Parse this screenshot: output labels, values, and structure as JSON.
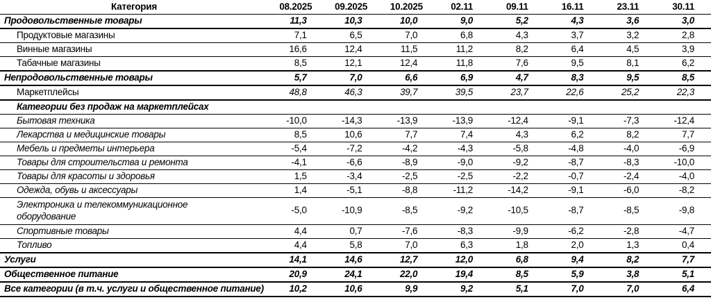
{
  "colors": {
    "background": "#ffffff",
    "text": "#000000",
    "rule": "#000000"
  },
  "table": {
    "header": {
      "category": "Категория",
      "columns": [
        "08.2025",
        "09.2025",
        "10.2025",
        "02.11",
        "09.11",
        "16.11",
        "23.11",
        "30.11"
      ]
    },
    "rows": [
      {
        "label": "Продовольственные товары",
        "style": "section",
        "values": [
          "11,3",
          "10,3",
          "10,0",
          "9,0",
          "5,2",
          "4,3",
          "3,6",
          "3,0"
        ]
      },
      {
        "label": "Продуктовые магазины",
        "style": "sub",
        "values": [
          "7,1",
          "6,5",
          "7,0",
          "6,8",
          "4,3",
          "3,7",
          "3,2",
          "2,8"
        ]
      },
      {
        "label": "Винные магазины",
        "style": "sub",
        "values": [
          "16,6",
          "12,4",
          "11,5",
          "11,2",
          "8,2",
          "6,4",
          "4,5",
          "3,9"
        ]
      },
      {
        "label": "Табачные магазины",
        "style": "sub",
        "values": [
          "8,5",
          "12,1",
          "12,4",
          "11,8",
          "7,6",
          "9,5",
          "8,1",
          "6,2"
        ]
      },
      {
        "label": "Непродовольственные товары",
        "style": "section",
        "values": [
          "5,7",
          "7,0",
          "6,6",
          "6,9",
          "4,7",
          "8,3",
          "9,5",
          "8,5"
        ]
      },
      {
        "label": "Маркетплейсы",
        "style": "subm",
        "values": [
          "48,8",
          "46,3",
          "39,7",
          "39,5",
          "23,7",
          "22,6",
          "25,2",
          "22,3"
        ]
      },
      {
        "label": "Категории без продаж на маркетплейсах",
        "style": "subsection",
        "values": [
          "",
          "",
          "",
          "",
          "",
          "",
          "",
          ""
        ]
      },
      {
        "label": "Бытовая техника",
        "style": "subi",
        "values": [
          "-10,0",
          "-14,3",
          "-13,9",
          "-13,9",
          "-12,4",
          "-9,1",
          "-7,3",
          "-12,4"
        ]
      },
      {
        "label": "Лекарства и медицинские товары",
        "style": "subi",
        "values": [
          "8,5",
          "10,6",
          "7,7",
          "7,4",
          "4,3",
          "6,2",
          "8,2",
          "7,7"
        ]
      },
      {
        "label": "Мебель и предметы интерьера",
        "style": "subi",
        "values": [
          "-5,4",
          "-7,2",
          "-4,2",
          "-4,3",
          "-5,8",
          "-4,8",
          "-4,0",
          "-6,9"
        ]
      },
      {
        "label": "Товары для строительства и ремонта",
        "style": "subi",
        "values": [
          "-4,1",
          "-6,6",
          "-8,9",
          "-9,0",
          "-9,2",
          "-8,7",
          "-8,3",
          "-10,0"
        ]
      },
      {
        "label": "Товары для красоты и здоровья",
        "style": "subi",
        "values": [
          "1,5",
          "-3,4",
          "-2,5",
          "-2,5",
          "-2,2",
          "-0,7",
          "-2,4",
          "-4,0"
        ]
      },
      {
        "label": "Одежда, обувь и аксессуары",
        "style": "subi",
        "values": [
          "1,4",
          "-5,1",
          "-8,8",
          "-11,2",
          "-14,2",
          "-9,1",
          "-6,0",
          "-8,2"
        ]
      },
      {
        "label": "Электроника и телекоммуникационное оборудование",
        "style": "subi",
        "wrap": true,
        "values": [
          "-5,0",
          "-10,9",
          "-8,5",
          "-9,2",
          "-10,5",
          "-8,7",
          "-8,5",
          "-9,8"
        ]
      },
      {
        "label": "Спортивные товары",
        "style": "subi",
        "values": [
          "4,4",
          "0,7",
          "-7,6",
          "-8,3",
          "-9,9",
          "-6,2",
          "-2,8",
          "-4,7"
        ]
      },
      {
        "label": "Топливо",
        "style": "subi",
        "values": [
          "4,4",
          "5,8",
          "7,0",
          "6,3",
          "1,8",
          "2,0",
          "1,3",
          "0,4"
        ]
      },
      {
        "label": "Услуги",
        "style": "section",
        "values": [
          "14,1",
          "14,6",
          "12,7",
          "12,0",
          "6,8",
          "9,4",
          "8,2",
          "7,7"
        ]
      },
      {
        "label": "Общественное питание",
        "style": "section",
        "values": [
          "20,9",
          "24,1",
          "22,0",
          "19,4",
          "8,5",
          "5,9",
          "3,8",
          "5,1"
        ]
      },
      {
        "label": "Все категории (в т.ч. услуги и общественное питание)",
        "style": "section",
        "values": [
          "10,2",
          "10,6",
          "9,9",
          "9,2",
          "5,1",
          "7,0",
          "7,0",
          "6,4"
        ]
      }
    ]
  }
}
